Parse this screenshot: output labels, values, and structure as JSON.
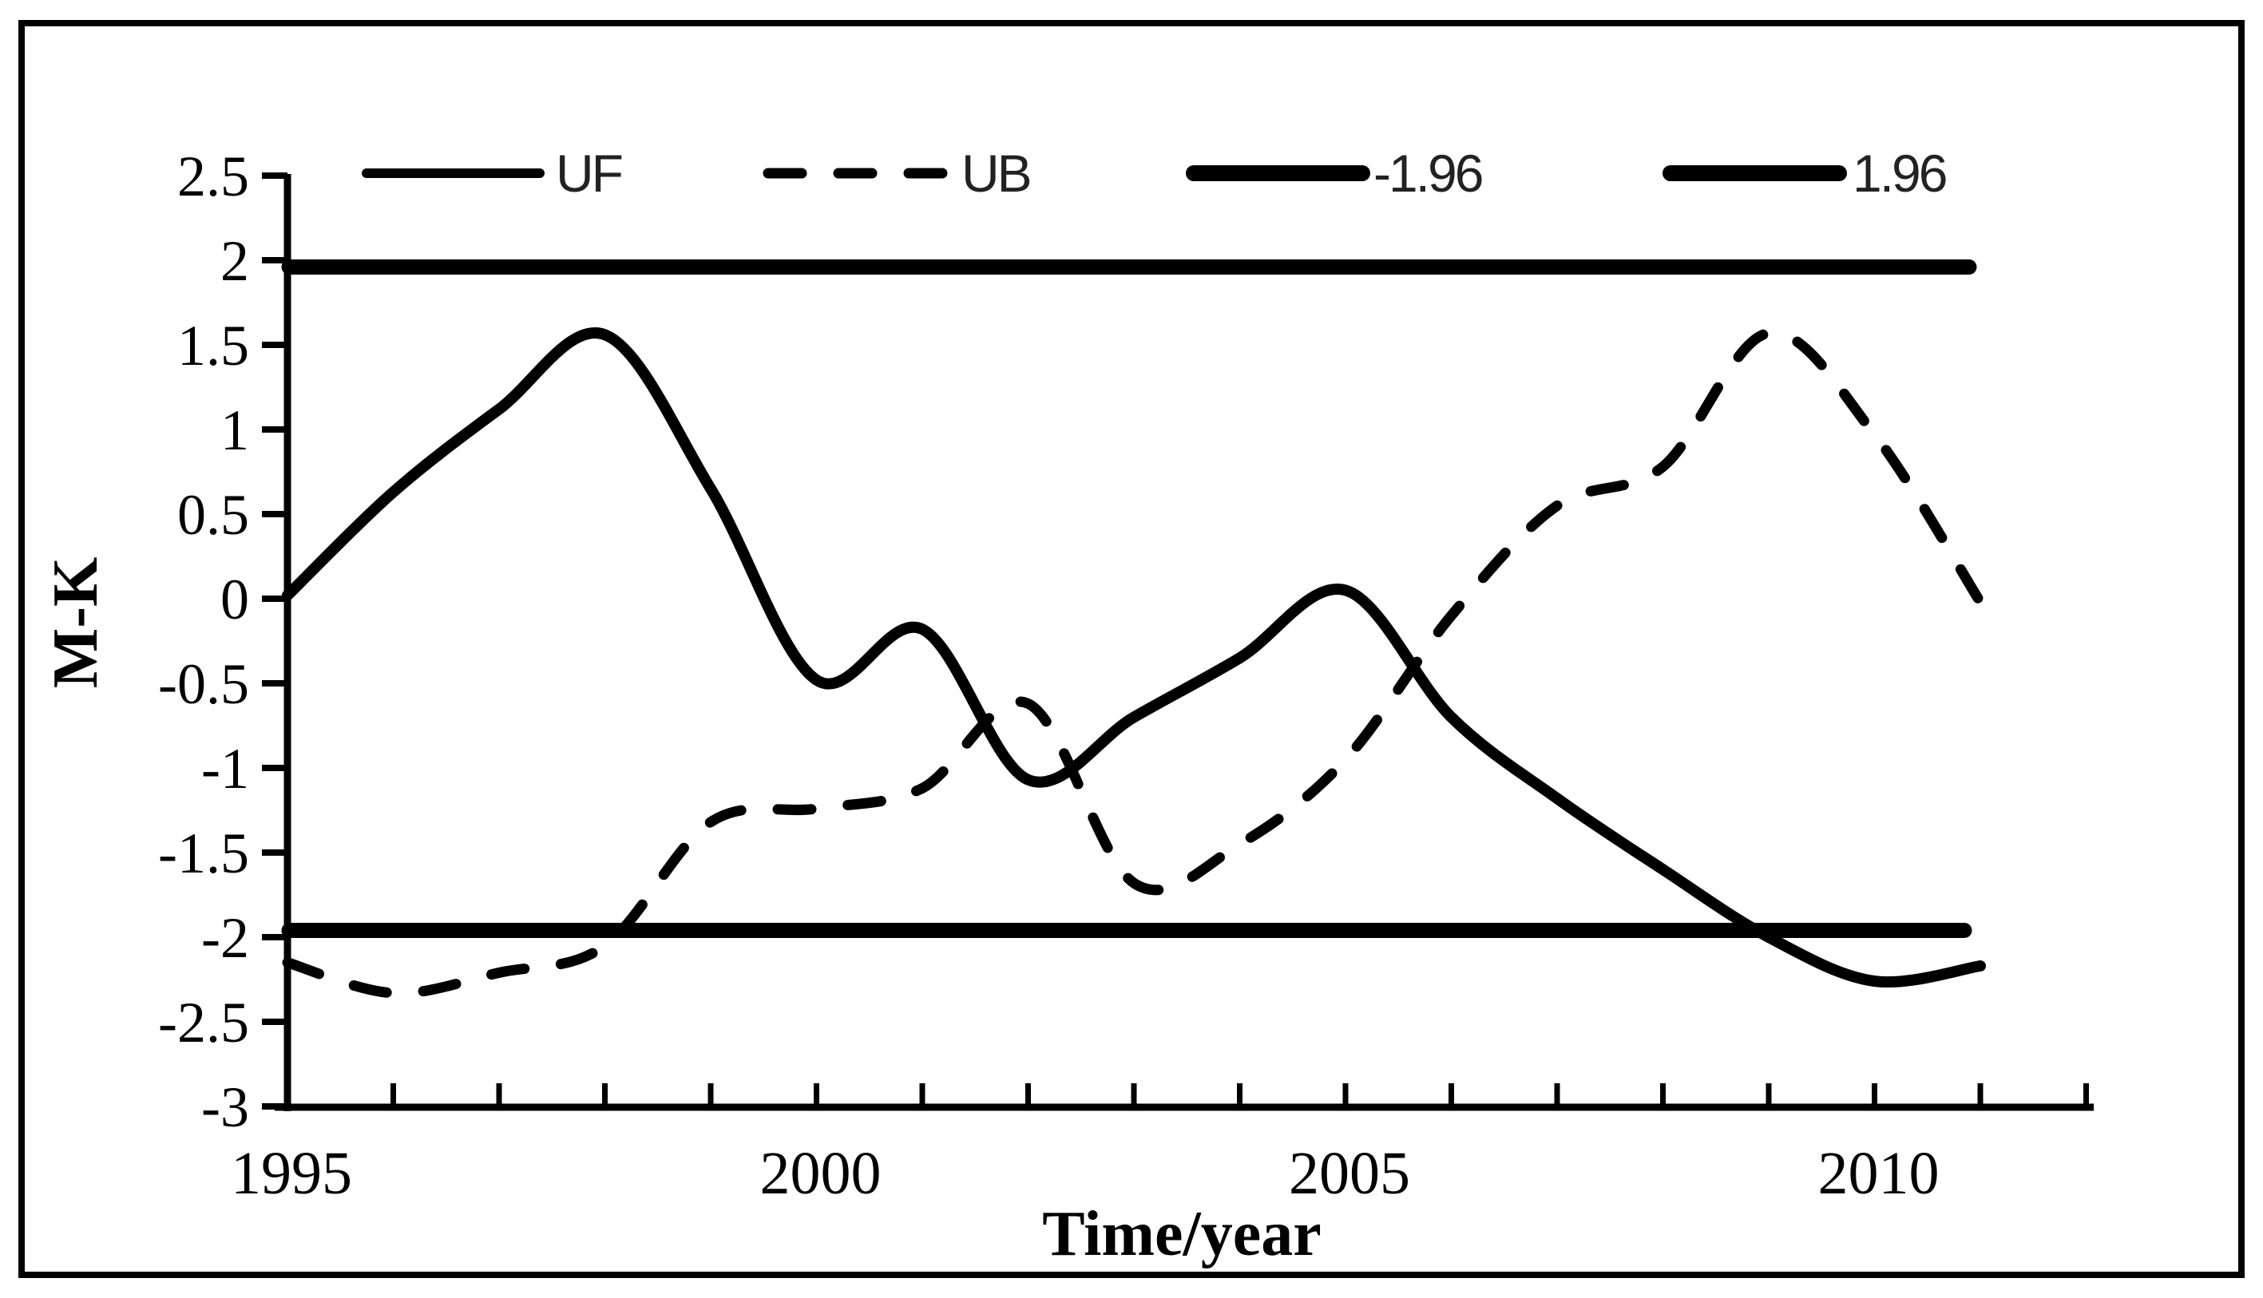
{
  "figure": {
    "background_color": "#ffffff",
    "border_color": "#000000",
    "line_color": "#000000",
    "legend_text_color": "#222222"
  },
  "legend": {
    "items": [
      {
        "id": "uf",
        "label": "UF",
        "style": "solid-thin"
      },
      {
        "id": "ub",
        "label": "UB",
        "style": "dashed"
      },
      {
        "id": "neg196",
        "label": "-1.96",
        "style": "solid-thick"
      },
      {
        "id": "pos196",
        "label": "1.96",
        "style": "solid-thick"
      }
    ]
  },
  "chart_data": {
    "type": "line",
    "title": "",
    "xlabel": "Time/year",
    "ylabel": "M-K",
    "x": [
      1995,
      1996,
      1997,
      1998,
      1999,
      2000,
      2001,
      2002,
      2003,
      2004,
      2005,
      2006,
      2007,
      2008,
      2009,
      2010,
      2011
    ],
    "series": [
      {
        "name": "UF",
        "style": "solid",
        "values": [
          0.02,
          0.63,
          1.12,
          1.56,
          0.65,
          -0.48,
          -0.18,
          -1.07,
          -0.7,
          -0.35,
          0.05,
          -0.7,
          -1.18,
          -1.6,
          -2.0,
          -2.26,
          -2.17
        ]
      },
      {
        "name": "UB",
        "style": "dashed",
        "values": [
          -2.15,
          -2.33,
          -2.21,
          -2.05,
          -1.32,
          -1.24,
          -1.12,
          -0.62,
          -1.68,
          -1.45,
          -0.95,
          -0.1,
          0.55,
          0.78,
          1.57,
          0.97,
          -0.02
        ]
      }
    ],
    "reference_lines": [
      {
        "label": "1.96",
        "value": 1.96
      },
      {
        "label": "-1.96",
        "value": -1.96
      }
    ],
    "ylim": [
      -3,
      2.5
    ],
    "ytick_labels": [
      "2.5",
      "2",
      "1.5",
      "1",
      "0.5",
      "0",
      "-0.5",
      "-1",
      "-1.5",
      "-2",
      "-2.5",
      "-3"
    ],
    "ytick_values": [
      2.5,
      2,
      1.5,
      1,
      0.5,
      0,
      -0.5,
      -1,
      -1.5,
      -2,
      -2.5,
      -3
    ],
    "xlim": [
      1995,
      2012
    ],
    "xticks_minor_years": [
      1995,
      1996,
      1997,
      1998,
      1999,
      2000,
      2001,
      2002,
      2003,
      2004,
      2005,
      2006,
      2007,
      2008,
      2009,
      2010,
      2011,
      2012
    ],
    "xtick_labels": [
      "1995",
      "2000",
      "2005",
      "2010"
    ],
    "xtick_label_years": [
      1995,
      2000,
      2005,
      2010
    ],
    "grid": false,
    "legend_position": "top"
  }
}
